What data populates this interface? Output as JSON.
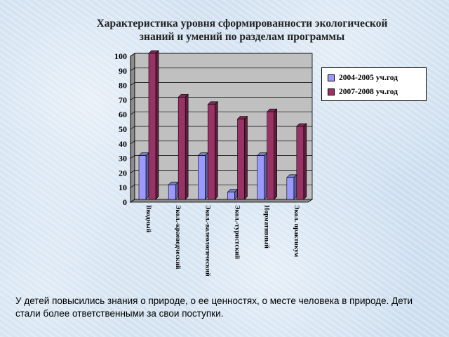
{
  "chart_data": {
    "type": "bar",
    "title": "Характеристика уровня сформированности экологической знаний и умений по разделам программы",
    "title_lines": [
      "Характеристика уровня сформированности экологической",
      "знаний и умений по разделам программы"
    ],
    "categories": [
      "Вводный",
      "Экол.-краеведческий",
      "Экол.-валеологический",
      "Экол.-туристский",
      "Нормативный",
      "Экол. практикум"
    ],
    "series": [
      {
        "name": "2004-2005 уч.год",
        "color": "#9999ff",
        "values": [
          30,
          10,
          30,
          5,
          30,
          15
        ]
      },
      {
        "name": "2007-2008 уч.год",
        "color": "#993366",
        "values": [
          100,
          70,
          65,
          55,
          60,
          50
        ]
      }
    ],
    "ylim": [
      0,
      100
    ],
    "yticks": [
      0,
      10,
      20,
      30,
      40,
      50,
      60,
      70,
      80,
      90,
      100
    ],
    "grid": true,
    "legend_position": "right",
    "xlabel": "",
    "ylabel": ""
  },
  "caption": "У детей повысились знания о природе, о ее ценностях, о месте человека в природе. Дети стали более ответственными за свои поступки.",
  "colors": {
    "plot_area": "#c0c0c0",
    "wall_side": "#8c8c8c",
    "floor": "#8a8a8a"
  }
}
